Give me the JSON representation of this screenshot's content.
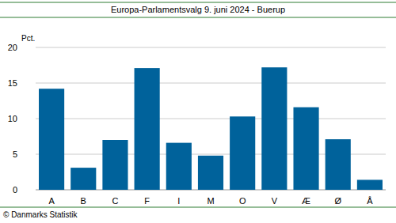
{
  "chart_data": {
    "type": "bar",
    "title": "Europa-Parlamentsvalg 9. juni 2024 - Buerup",
    "y_label": "Pct.",
    "source": "© Danmarks Statistik",
    "categories": [
      "A",
      "B",
      "C",
      "F",
      "I",
      "M",
      "O",
      "V",
      "Æ",
      "Ø",
      "Å"
    ],
    "values": [
      14.2,
      3.1,
      7.0,
      17.1,
      6.6,
      4.8,
      10.3,
      17.2,
      11.6,
      7.1,
      1.4
    ],
    "color": "#00629b",
    "ylim": [
      0,
      20
    ],
    "yticks": [
      0,
      5,
      10,
      15,
      20
    ],
    "grid": true
  }
}
